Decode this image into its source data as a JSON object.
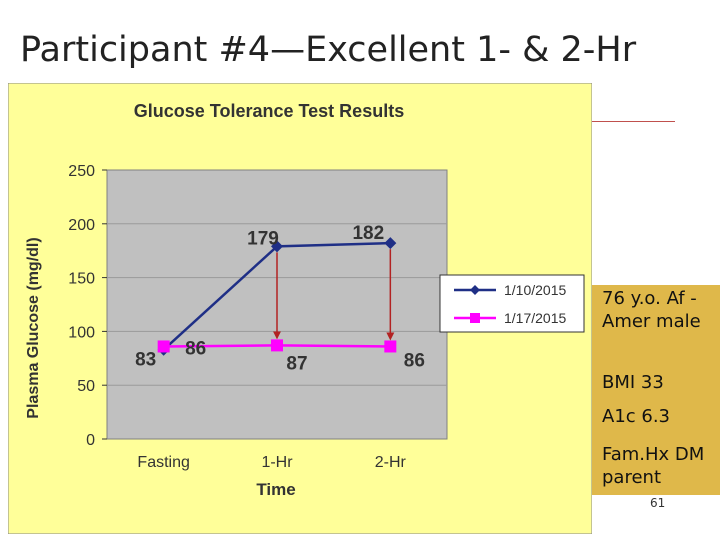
{
  "slide": {
    "title": "Participant #4—Excellent 1- & 2-Hr",
    "page_number": "61"
  },
  "info": {
    "lines": [
      "76 y.o.  Af -Amer male",
      "BMI 33",
      "A1c 6.3",
      "Fam.Hx DM parent"
    ]
  },
  "colors": {
    "panel_bg": "#ffff99",
    "plot_bg": "#c0c0c0",
    "series1": "#1f2f86",
    "series2": "#ff00ff",
    "arrow": "#b22222",
    "info_box": "#dfb84a",
    "title_rule": "#c0504d"
  },
  "chart_data": {
    "type": "line",
    "title": "Glucose Tolerance Test Results",
    "xlabel": "Time",
    "ylabel": "Plasma Glucose (mg/dl)",
    "categories": [
      "Fasting",
      "1-Hr",
      "2-Hr"
    ],
    "ylim": [
      0,
      250
    ],
    "yticks": [
      "0",
      "50",
      "100",
      "150",
      "200",
      "250"
    ],
    "grid": true,
    "legend_position": "right",
    "series": [
      {
        "name": "1/10/2015",
        "values": [
          83,
          179,
          182
        ],
        "labels": [
          "83",
          "179",
          "182"
        ],
        "marker": "diamond"
      },
      {
        "name": "1/17/2015",
        "values": [
          86,
          87,
          86
        ],
        "labels": [
          "86",
          "87",
          "86"
        ],
        "marker": "square"
      }
    ],
    "annotations": [
      "arrow from 179 to 87 at 1-Hr",
      "arrow from 182 to 86 at 2-Hr"
    ]
  }
}
